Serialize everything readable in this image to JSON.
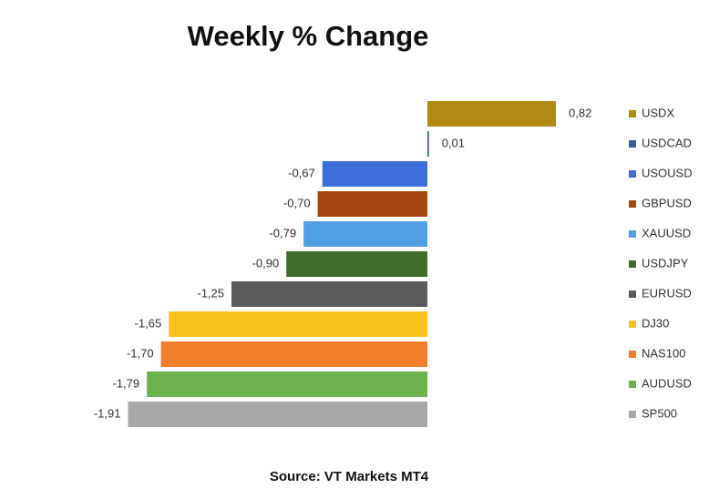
{
  "chart_data": {
    "type": "bar",
    "orientation": "horizontal",
    "title": "Weekly % Change",
    "source": "Source: VT Markets MT4",
    "categories": [
      "USDX",
      "USDCAD",
      "USOUSD",
      "GBPUSD",
      "XAUUSD",
      "USDJPY",
      "EURUSD",
      "DJ30",
      "NAS100",
      "AUDUSD",
      "SP500"
    ],
    "values": [
      0.82,
      0.01,
      -0.67,
      -0.7,
      -0.79,
      -0.9,
      -1.25,
      -1.65,
      -1.7,
      -1.79,
      -1.91
    ],
    "value_labels": [
      "0,82",
      "0,01",
      "-0,67",
      "-0,70",
      "-0,79",
      "-0,90",
      "-1,25",
      "-1,65",
      "-1,70",
      "-1,79",
      "-1,91"
    ],
    "colors": [
      "#b08a12",
      "#2e5f9e",
      "#3d6fd8",
      "#a4450f",
      "#4f9fe2",
      "#3f6c2a",
      "#5b5b5b",
      "#f8c21c",
      "#f27d2b",
      "#6cb24c",
      "#a8a8a8"
    ],
    "legend": "right"
  }
}
